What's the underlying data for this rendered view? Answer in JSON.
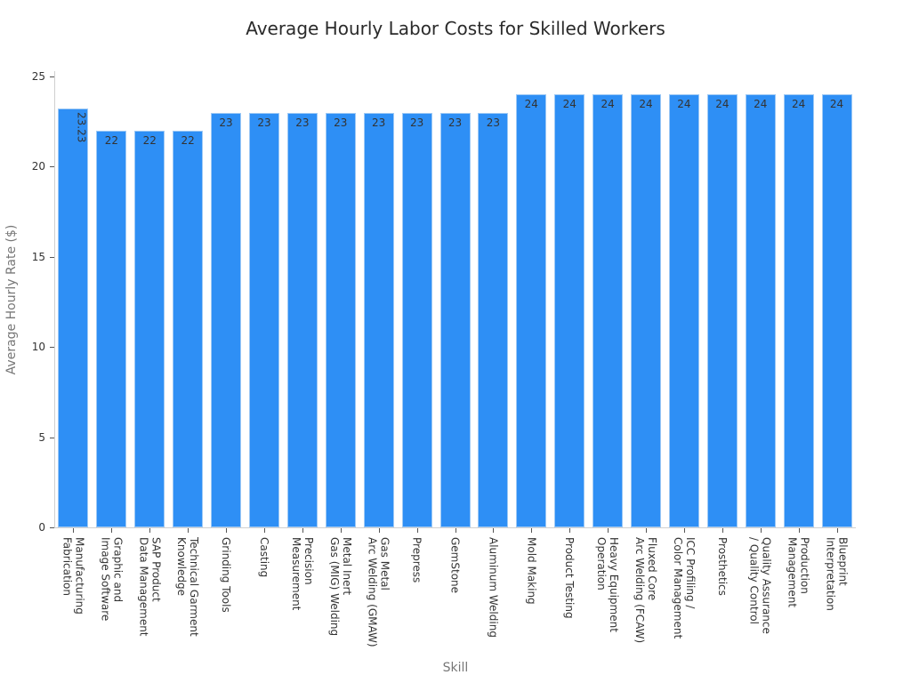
{
  "chart_data": {
    "type": "bar",
    "title": "Average Hourly Labor Costs for Skilled Workers",
    "xlabel": "Skill",
    "ylabel": "Average Hourly Rate ($)",
    "ylim": [
      0,
      25
    ],
    "yticks": [
      0,
      5,
      10,
      15,
      20,
      25
    ],
    "grid": false,
    "legend": null,
    "bar_color": "#2e8ff5",
    "categories": [
      "Manufacturing Fabrication",
      "Graphic and Image Software",
      "SAP Product Data Management",
      "Technical Garment Knowledge",
      "Grinding Tools",
      "Casting",
      "Precision Measurement",
      "Metal Inert Gas (MIG) Welding",
      "Gas Metal Arc Welding (GMAW)",
      "Prepress",
      "GemStone",
      "Aluminum Welding",
      "Mold Making",
      "Product Testing",
      "Heavy Equipment Operation",
      "Fluxed Core Arc Welding (FCAW)",
      "ICC Profiling / Color Management",
      "Prosthetics",
      "Quality Assurance / Quality Control",
      "Production Management",
      "Blueprint Interpretation"
    ],
    "tick_labels": [
      "Manufacturing\nFabrication",
      "Graphic and\nImage Software",
      "SAP Product\nData Management",
      "Technical Garment\nKnowledge",
      "Grinding Tools",
      "Casting",
      "Precision\nMeasurement",
      "Metal Inert\nGas (MIG) Welding",
      "Gas Metal\nArc Welding (GMAW)",
      "Prepress",
      "GemStone",
      "Aluminum Welding",
      "Mold Making",
      "Product Testing",
      "Heavy Equipment\nOperation",
      "Fluxed Core\nArc Welding (FCAW)",
      "ICC Profiling /\nColor Management",
      "Prosthetics",
      "Quality Assurance\n/ Quality Control",
      "Production\nManagement",
      "Blueprint\nInterpretation"
    ],
    "values": [
      23.23,
      22,
      22,
      22,
      23,
      23,
      23,
      23,
      23,
      23,
      23,
      23,
      24,
      24,
      24,
      24,
      24,
      24,
      24,
      24,
      24
    ],
    "value_labels": [
      "23.23",
      "22",
      "22",
      "22",
      "23",
      "23",
      "23",
      "23",
      "23",
      "23",
      "23",
      "23",
      "24",
      "24",
      "24",
      "24",
      "24",
      "24",
      "24",
      "24",
      "24"
    ]
  }
}
